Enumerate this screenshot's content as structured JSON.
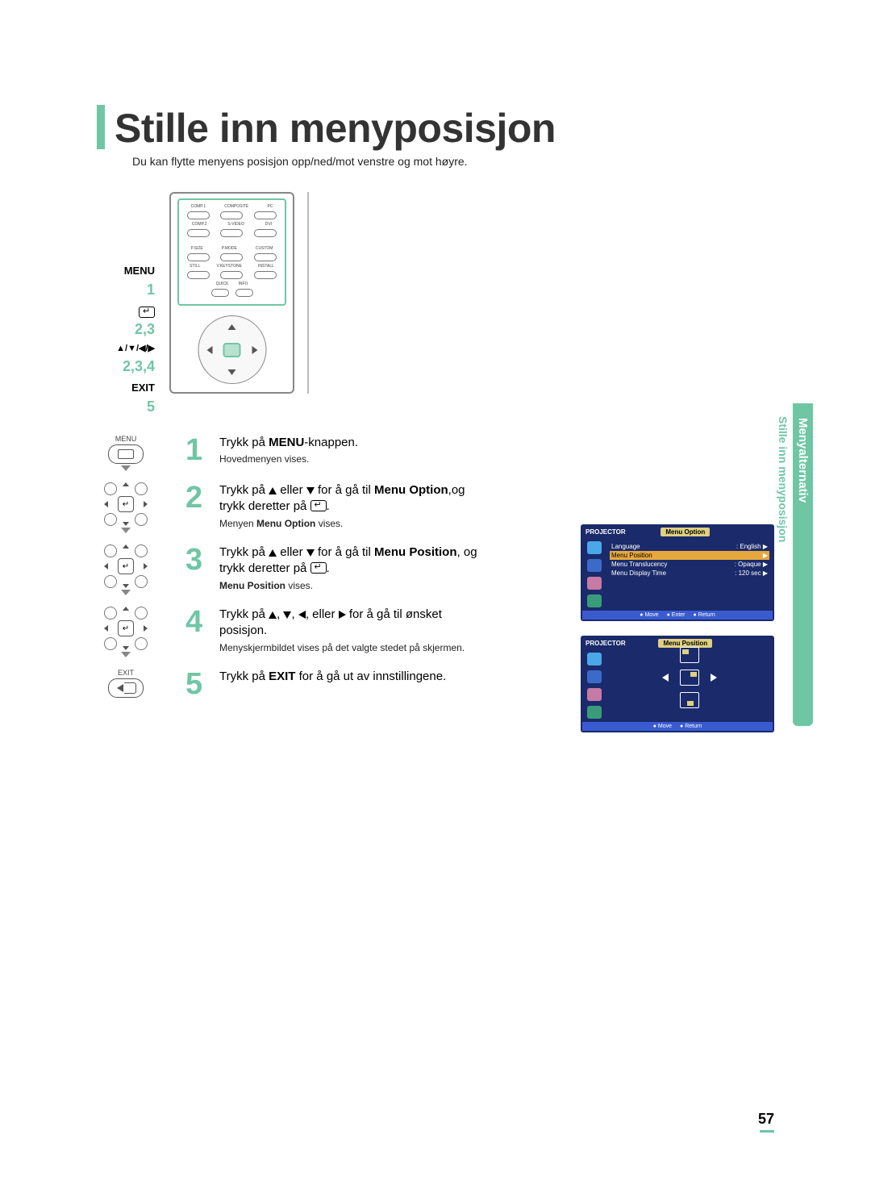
{
  "colors": {
    "accent": "#6fc6a5",
    "accent_light": "#b7e2d0",
    "number": "#6fc6a5",
    "osd_bg": "#1a2a6a",
    "osd_header": "#dfd080",
    "osd_hl": "#e6a83c",
    "osd_footer_blue": "#3a5bd0",
    "osd_icon1": "#4aa8e8",
    "osd_icon2": "#3b6ac9",
    "osd_icon3": "#c77aa4",
    "osd_icon4": "#3a9b7a"
  },
  "title": "Stille inn menyposisjon",
  "subtitle": "Du kan flytte menyens posisjon opp/ned/mot venstre og mot høyre.",
  "remote_labels": {
    "menu": "MENU",
    "menu_num": "1",
    "enter_num": "2,3",
    "arrows_glyph": "▲/▼/◀/▶",
    "arrows_num": "2,3,4",
    "exit": "EXIT",
    "exit_num": "5"
  },
  "remote": {
    "src_row1": [
      "COMP.1",
      "COMPOSITE",
      "PC"
    ],
    "src_row2": [
      "COMP.2",
      "S-VIDEO",
      "DVI"
    ],
    "mode_row1": [
      "P.SIZE",
      "P.MODE",
      "CUSTOM"
    ],
    "mode_row2": [
      "STILL",
      "V.KEYSTONE",
      "INSTALL"
    ],
    "quick_info": [
      "QUICK",
      "INFO"
    ],
    "menu_exit": [
      "MENU",
      "EXIT"
    ]
  },
  "steps": {
    "s1": {
      "num": "1",
      "icon_label": "MENU",
      "line": "Trykk på ",
      "bold": "MENU",
      "after": "-knappen.",
      "sub": "Hovedmenyen vises."
    },
    "s2": {
      "num": "2",
      "line_a": "Trykk på ",
      "line_b": " eller ",
      "line_c": " for å gå til ",
      "bold": "Menu Option",
      "after": ",og",
      "line2": "trykk deretter på ",
      "sub_a": "Menyen ",
      "sub_bold": "Menu Option",
      "sub_b": " vises."
    },
    "s3": {
      "num": "3",
      "line_a": "Trykk på ",
      "line_b": " eller ",
      "line_c": " for å gå til ",
      "bold": "Menu Position",
      "after": ", og",
      "line2": "trykk deretter på ",
      "sub_bold": "Menu Position",
      "sub_b": " vises."
    },
    "s4": {
      "num": "4",
      "line_a": "Trykk på ",
      "line_b": ", ",
      "line_c": ", ",
      "line_d": ", eller ",
      "line_e": " for å gå til ønsket",
      "line2": "posisjon.",
      "sub": "Menyskjermbildet vises på det valgte stedet på skjermen."
    },
    "s5": {
      "num": "5",
      "icon_label": "EXIT",
      "line_a": "Trykk på ",
      "bold": "EXIT",
      "line_b": " for å gå ut av innstillingene."
    }
  },
  "osd": {
    "projector": "PROJECTOR",
    "menu_option": {
      "title": "Menu Option",
      "rows": [
        {
          "k": "Language",
          "v": ": English"
        },
        {
          "k": "Menu Position",
          "v": "",
          "hl": true
        },
        {
          "k": "Menu Translucency",
          "v": ": Opaque"
        },
        {
          "k": "Menu Display Time",
          "v": ": 120 sec"
        }
      ],
      "footer": [
        "Move",
        "Enter",
        "Return"
      ]
    },
    "menu_position": {
      "title": "Menu Position",
      "footer": [
        "Move",
        "Return"
      ]
    }
  },
  "side": {
    "seg1": "Menyalternativ",
    "seg2": "Stille inn menyposisjon"
  },
  "page_number": "57"
}
